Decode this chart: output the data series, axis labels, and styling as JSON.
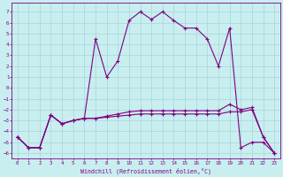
{
  "xlabel": "Windchill (Refroidissement éolien,°C)",
  "background_color": "#c8eef0",
  "grid_color": "#aad4d8",
  "line_color": "#800080",
  "x_ticks": [
    0,
    1,
    2,
    3,
    4,
    5,
    6,
    7,
    8,
    9,
    10,
    11,
    12,
    13,
    14,
    15,
    16,
    17,
    18,
    19,
    20,
    21,
    22,
    23
  ],
  "y_ticks": [
    7,
    6,
    5,
    4,
    3,
    2,
    1,
    0,
    -1,
    -2,
    -3,
    -4,
    -5,
    -6
  ],
  "ylim": [
    -6.5,
    7.8
  ],
  "xlim": [
    -0.5,
    23.5
  ],
  "series1": {
    "x": [
      0,
      1,
      2,
      3,
      4,
      5,
      6,
      7,
      8,
      9,
      10,
      11,
      12,
      13,
      14,
      15,
      16,
      17,
      18,
      19,
      20,
      21,
      22,
      23
    ],
    "y": [
      -4.5,
      -5.5,
      -5.5,
      -2.5,
      -3.3,
      -3.0,
      -2.8,
      4.5,
      1.0,
      2.5,
      6.2,
      7.0,
      6.3,
      7.0,
      6.2,
      5.5,
      5.5,
      4.5,
      2.0,
      5.5,
      -5.5,
      -5.0,
      -5.0,
      -6.0
    ]
  },
  "series2": {
    "x": [
      0,
      1,
      2,
      3,
      4,
      5,
      6,
      7,
      8,
      9,
      10,
      11,
      12,
      13,
      14,
      15,
      16,
      17,
      18,
      19,
      20,
      21,
      22,
      23
    ],
    "y": [
      -4.5,
      -5.5,
      -5.5,
      -2.5,
      -3.3,
      -3.0,
      -2.8,
      -2.8,
      -2.6,
      -2.4,
      -2.2,
      -2.1,
      -2.1,
      -2.1,
      -2.1,
      -2.1,
      -2.1,
      -2.1,
      -2.1,
      -1.5,
      -2.0,
      -1.8,
      -4.5,
      -6.0
    ]
  },
  "series3": {
    "x": [
      0,
      1,
      2,
      3,
      4,
      5,
      6,
      7,
      8,
      9,
      10,
      11,
      12,
      13,
      14,
      15,
      16,
      17,
      18,
      19,
      20,
      21,
      22,
      23
    ],
    "y": [
      -4.5,
      -5.5,
      -5.5,
      -2.5,
      -3.3,
      -3.0,
      -2.8,
      -2.8,
      -2.7,
      -2.6,
      -2.5,
      -2.4,
      -2.4,
      -2.4,
      -2.4,
      -2.4,
      -2.4,
      -2.4,
      -2.4,
      -2.2,
      -2.2,
      -2.0,
      -4.5,
      -6.0
    ]
  }
}
